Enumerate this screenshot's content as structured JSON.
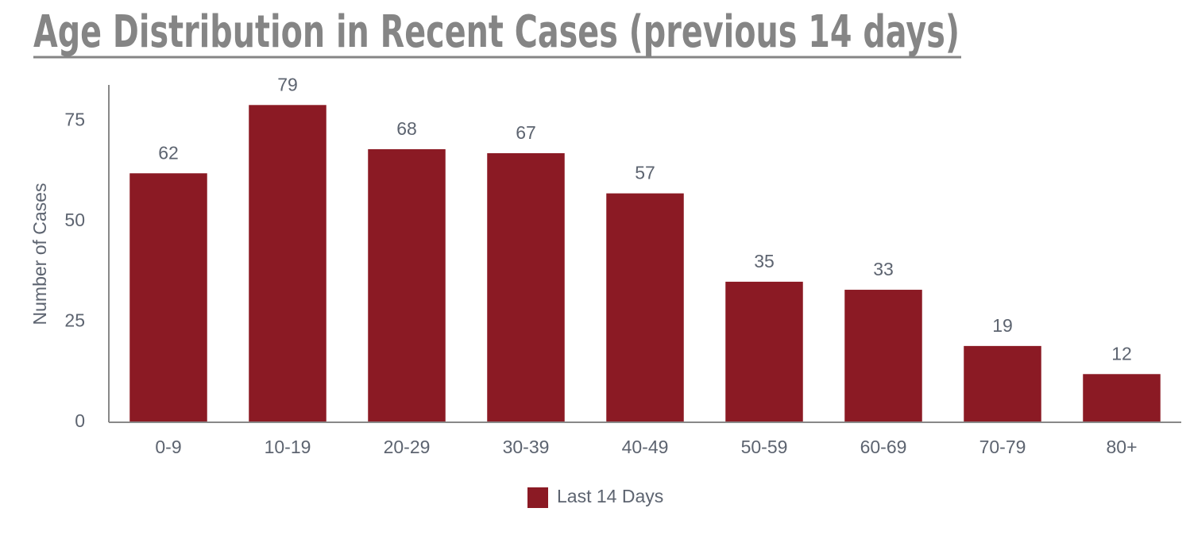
{
  "chart_data": {
    "type": "bar",
    "title": "Age Distribution in Recent Cases (previous 14 days)",
    "y_label": "Number of Cases",
    "categories": [
      "0-9",
      "10-19",
      "20-29",
      "30-39",
      "40-49",
      "50-59",
      "60-69",
      "70-79",
      "80+"
    ],
    "series": [
      {
        "name": "Last 14 Days",
        "color": "#8b1a24",
        "values": [
          62,
          79,
          68,
          67,
          57,
          35,
          33,
          19,
          12
        ]
      }
    ],
    "ylim": [
      0,
      84
    ],
    "yticks": [
      0,
      25,
      50,
      75
    ],
    "grid": false,
    "legend": "bottom"
  }
}
